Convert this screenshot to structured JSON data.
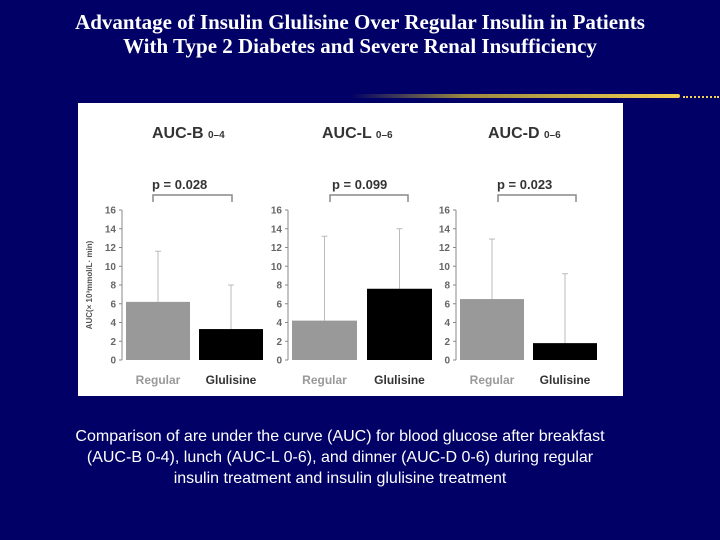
{
  "title": {
    "line1": "Advantage of Insulin Glulisine Over Regular Insulin in Patients",
    "line2": "With Type 2 Diabetes and Severe Renal Insufficiency"
  },
  "caption": {
    "line1": "Comparison of are under the curve (AUC) for blood glucose after breakfast",
    "line2": "(AUC-B 0-4), lunch (AUC-L 0-6), and dinner (AUC-D 0-6) during regular",
    "line3": "insulin treatment  and insulin glulisine treatment"
  },
  "colors": {
    "background": "#000066",
    "regular_bar": "#999999",
    "glulisine_bar": "#000000",
    "accent_line": "#f2d050"
  },
  "chart_data": [
    {
      "type": "bar",
      "title": "AUC-B",
      "title_subscript": "0–4",
      "p_value": "p = 0.028",
      "ylabel": "AUC(× 10³mmol/L· min)",
      "ylim": [
        0,
        16
      ],
      "yticks": [
        "0",
        "2",
        "4",
        "6",
        "8",
        "10",
        "12",
        "14",
        "16"
      ],
      "categories": [
        "Regular",
        "Glulisine"
      ],
      "values": [
        6.2,
        3.3
      ],
      "error_upper": [
        11.6,
        8.0
      ]
    },
    {
      "type": "bar",
      "title": "AUC-L",
      "title_subscript": "0–6",
      "p_value": "p = 0.099",
      "ylabel": "",
      "ylim": [
        0,
        16
      ],
      "yticks": [
        "0",
        "2",
        "4",
        "6",
        "8",
        "10",
        "12",
        "14",
        "16"
      ],
      "categories": [
        "Regular",
        "Glulisine"
      ],
      "values": [
        4.2,
        7.6
      ],
      "error_upper": [
        13.2,
        14.0
      ]
    },
    {
      "type": "bar",
      "title": "AUC-D",
      "title_subscript": "0–6",
      "p_value": "p = 0.023",
      "ylabel": "",
      "ylim": [
        0,
        16
      ],
      "yticks": [
        "0",
        "2",
        "4",
        "6",
        "8",
        "10",
        "12",
        "14",
        "16"
      ],
      "categories": [
        "Regular",
        "Glulisine"
      ],
      "values": [
        6.5,
        1.8
      ],
      "error_upper": [
        12.9,
        9.2
      ]
    }
  ]
}
